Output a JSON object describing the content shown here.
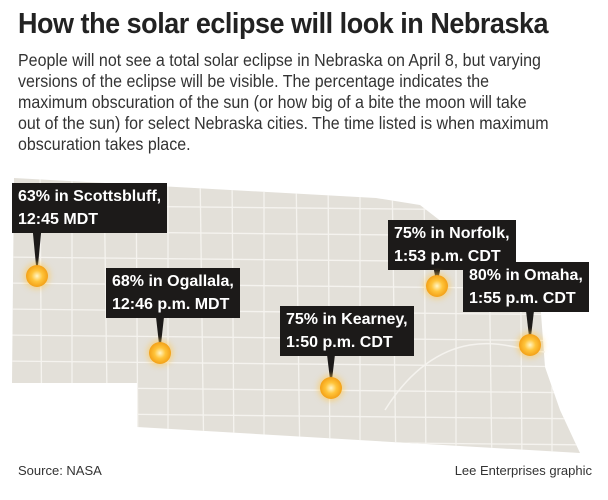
{
  "title": "How the solar eclipse will look in Nebraska",
  "description": "People will not see a total solar eclipse in Nebraska on April 8, but varying versions of the eclipse will be visible. The percentage indicates the maximum obscuration of the sun (or how big of a bite the moon will take out of the sun) for select Nebraska cities. The time listed is when maximum obscuration takes place.",
  "colors": {
    "map_fill": "#e3e0d9",
    "county_lines": "#f5f3ef",
    "label_bg": "#1c1a19",
    "marker": "#f5a623"
  },
  "cities": [
    {
      "name": "Scottsbluff",
      "line1": "63% in Scottsbluff,",
      "line2": "12:45 MDT",
      "percent": 63
    },
    {
      "name": "Ogallala",
      "line1": "68% in Ogallala,",
      "line2": "12:46 p.m. MDT",
      "percent": 68
    },
    {
      "name": "Kearney",
      "line1": "75% in Kearney,",
      "line2": "1:50 p.m. CDT",
      "percent": 75
    },
    {
      "name": "Norfolk",
      "line1": "75% in Norfolk,",
      "line2": "1:53 p.m. CDT",
      "percent": 75
    },
    {
      "name": "Omaha",
      "line1": "80% in Omaha,",
      "line2": "1:55 p.m. CDT",
      "percent": 80
    }
  ],
  "source": "Source: NASA",
  "credit": "Lee Enterprises graphic"
}
